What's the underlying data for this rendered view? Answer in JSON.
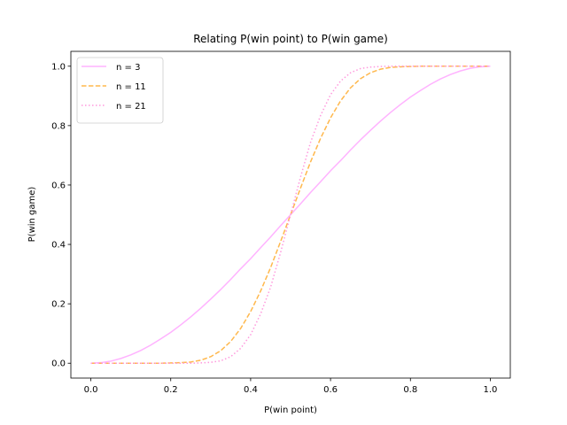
{
  "chart_data": {
    "type": "line",
    "title": "Relating P(win point) to P(win game)",
    "xlabel": "P(win point)",
    "ylabel": "P(win game)",
    "xlim": [
      -0.05,
      1.05
    ],
    "ylim": [
      -0.05,
      1.05
    ],
    "xticks": [
      0.0,
      0.2,
      0.4,
      0.6,
      0.8,
      1.0
    ],
    "yticks": [
      0.0,
      0.2,
      0.4,
      0.6,
      0.8,
      1.0
    ],
    "xtick_labels": [
      "0.0",
      "0.2",
      "0.4",
      "0.6",
      "0.8",
      "1.0"
    ],
    "ytick_labels": [
      "0.0",
      "0.2",
      "0.4",
      "0.6",
      "0.8",
      "1.0"
    ],
    "grid": false,
    "legend_position": "upper-left",
    "x": [
      0.0,
      0.025,
      0.05,
      0.075,
      0.1,
      0.125,
      0.15,
      0.175,
      0.2,
      0.225,
      0.25,
      0.275,
      0.3,
      0.325,
      0.35,
      0.375,
      0.4,
      0.425,
      0.45,
      0.475,
      0.5,
      0.525,
      0.55,
      0.575,
      0.6,
      0.625,
      0.65,
      0.675,
      0.7,
      0.725,
      0.75,
      0.775,
      0.8,
      0.825,
      0.85,
      0.875,
      0.9,
      0.925,
      0.95,
      0.975,
      1.0
    ],
    "series": [
      {
        "name": "n = 3",
        "color": "#ffb3ff",
        "dash": "solid",
        "values": [
          0.0,
          0.002,
          0.007,
          0.016,
          0.028,
          0.043,
          0.061,
          0.082,
          0.104,
          0.129,
          0.156,
          0.185,
          0.216,
          0.248,
          0.282,
          0.318,
          0.352,
          0.389,
          0.425,
          0.463,
          0.5,
          0.537,
          0.575,
          0.611,
          0.648,
          0.682,
          0.718,
          0.752,
          0.784,
          0.815,
          0.844,
          0.871,
          0.896,
          0.918,
          0.939,
          0.957,
          0.972,
          0.984,
          0.993,
          0.998,
          1.0
        ]
      },
      {
        "name": "n = 11",
        "color": "#ffb84d",
        "dash": "dashed",
        "values": [
          0.0,
          0.0,
          0.0,
          0.0,
          0.0,
          0.0,
          0.0,
          0.0,
          0.001,
          0.002,
          0.004,
          0.01,
          0.022,
          0.042,
          0.073,
          0.117,
          0.174,
          0.243,
          0.322,
          0.41,
          0.5,
          0.59,
          0.678,
          0.757,
          0.826,
          0.883,
          0.927,
          0.958,
          0.978,
          0.99,
          0.996,
          0.998,
          0.999,
          1.0,
          1.0,
          1.0,
          1.0,
          1.0,
          1.0,
          1.0,
          1.0
        ]
      },
      {
        "name": "n = 21",
        "color": "#ff99dd",
        "dash": "dotted",
        "values": [
          0.0,
          0.0,
          0.0,
          0.0,
          0.0,
          0.0,
          0.0,
          0.0,
          0.0,
          0.0,
          0.0,
          0.001,
          0.003,
          0.008,
          0.022,
          0.05,
          0.096,
          0.166,
          0.256,
          0.373,
          0.5,
          0.627,
          0.744,
          0.834,
          0.904,
          0.95,
          0.978,
          0.992,
          0.997,
          0.999,
          1.0,
          1.0,
          1.0,
          1.0,
          1.0,
          1.0,
          1.0,
          1.0,
          1.0,
          1.0,
          1.0
        ]
      }
    ]
  }
}
